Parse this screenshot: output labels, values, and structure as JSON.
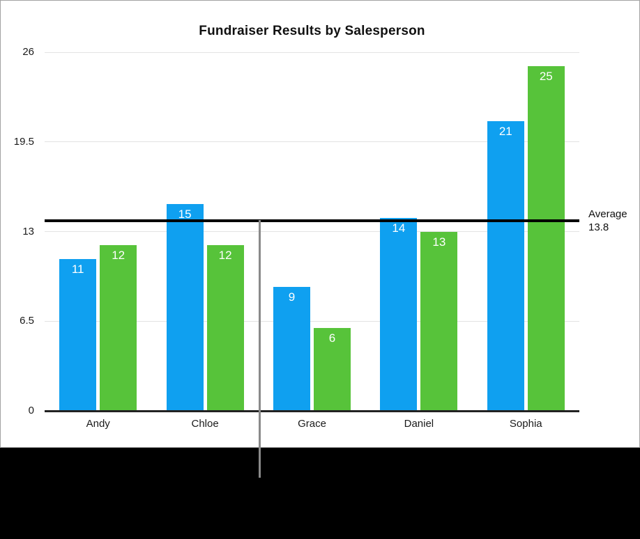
{
  "chart_data": {
    "type": "bar",
    "title": "Fundraiser Results by Salesperson",
    "categories": [
      "Andy",
      "Chloe",
      "Grace",
      "Daniel",
      "Sophia"
    ],
    "series": [
      {
        "id": "blue",
        "color": "#0fa0f0",
        "values": [
          11,
          15,
          9,
          14,
          21
        ]
      },
      {
        "id": "green",
        "color": "#57c33a",
        "values": [
          12,
          12,
          6,
          13,
          25
        ]
      }
    ],
    "bar_value_labels_visible": true,
    "y_axis": {
      "ticks": [
        0,
        6.5,
        13,
        19.5,
        26
      ],
      "tick_labels": [
        "0",
        "6.5",
        "13",
        "19.5",
        "26"
      ],
      "range": [
        0,
        26
      ]
    },
    "grid": "horizontal",
    "legend": "none",
    "average_line": {
      "value": 13.8,
      "label_line1": "Average",
      "label_line2": "13.8",
      "color": "#000000"
    },
    "pointer_line": {
      "visible": true,
      "color": "#8a8a8a"
    }
  },
  "colors": {
    "panel_background": "#ffffff",
    "panel_border": "#a2a2a2",
    "footer_background": "#000000",
    "gridline": "#e3e3e3",
    "axis_line": "#222222",
    "bar_label_text": "#ffffff",
    "text_color": "#1a1a1a"
  }
}
